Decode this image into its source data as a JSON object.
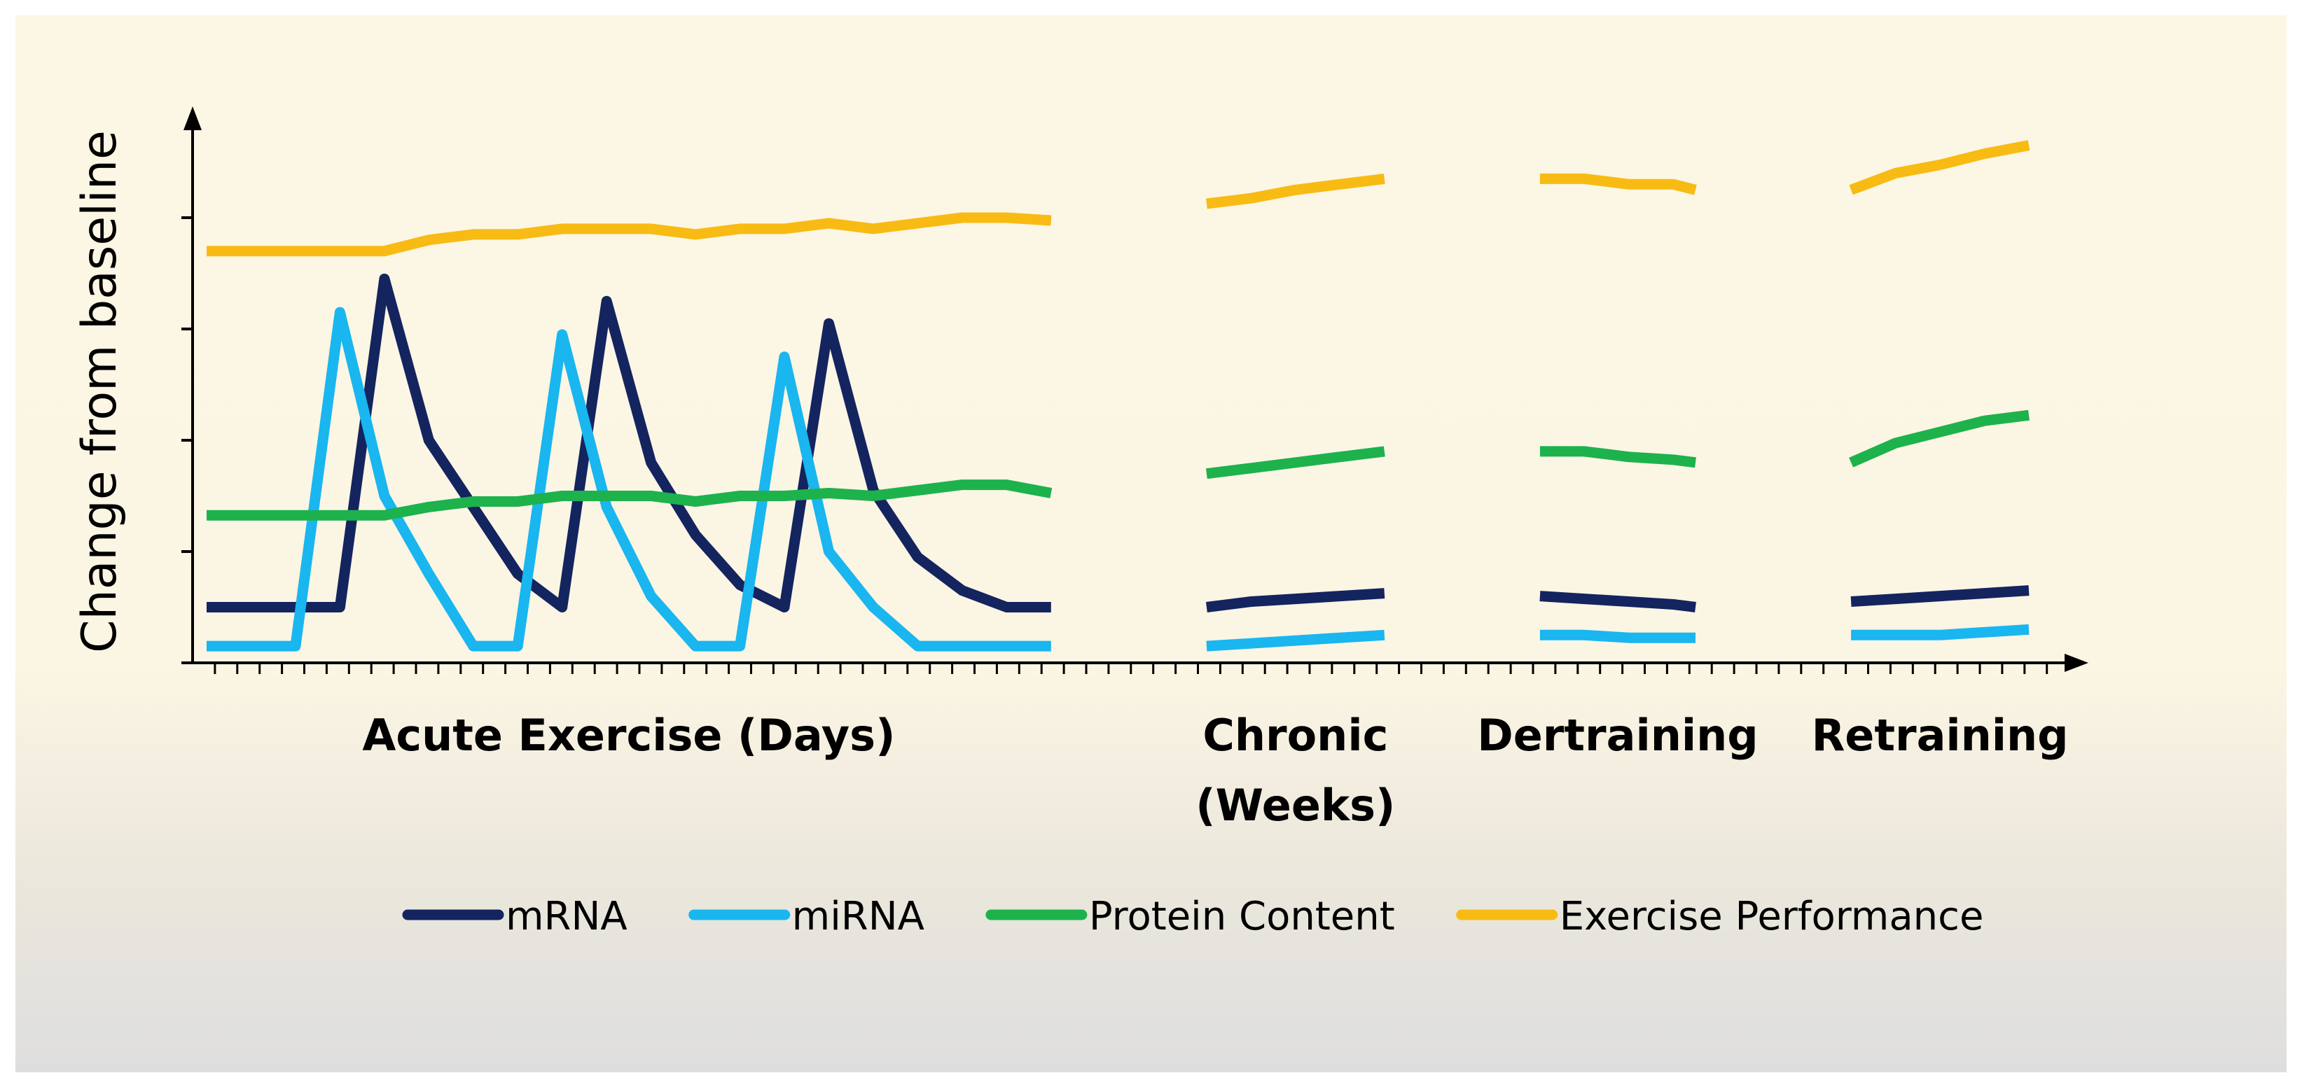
{
  "chart_data": {
    "type": "line",
    "title": "",
    "ylabel": "Change from baseline",
    "xlabel": "",
    "ylim": [
      0,
      100
    ],
    "grid": false,
    "legend_position": "bottom",
    "phases": [
      {
        "label_lines": [
          "Acute Exercise (Days)"
        ],
        "x_start": 0,
        "x_end": 19
      },
      {
        "label_lines": [
          "Chronic",
          "(Weeks)"
        ],
        "x_start": 22.5,
        "x_end": 26.5
      },
      {
        "label_lines": [
          "Dertraining"
        ],
        "x_start": 30,
        "x_end": 33.5
      },
      {
        "label_lines": [
          "Retraining"
        ],
        "x_start": 37,
        "x_end": 41
      }
    ],
    "series": [
      {
        "name": "mRNA",
        "color": "#14245f",
        "segments": [
          {
            "x": [
              0,
              1,
              2,
              3,
              4,
              5,
              6,
              7,
              8,
              9,
              10,
              11,
              12,
              13,
              14,
              15,
              16,
              17,
              18,
              19
            ],
            "y": [
              10,
              10,
              10,
              10,
              69,
              40,
              28,
              16,
              10,
              65,
              36,
              23,
              14,
              10,
              61,
              31,
              19,
              13,
              10,
              10
            ]
          },
          {
            "x": [
              22.5,
              23.5,
              24.5,
              25.5,
              26.5
            ],
            "y": [
              10,
              11,
              11.5,
              12,
              12.5
            ]
          },
          {
            "x": [
              30,
              31,
              32,
              33,
              33.5
            ],
            "y": [
              12,
              11.5,
              11,
              10.5,
              10
            ]
          },
          {
            "x": [
              37,
              38,
              39,
              40,
              41
            ],
            "y": [
              11,
              11.5,
              12,
              12.5,
              13
            ]
          }
        ]
      },
      {
        "name": "miRNA",
        "color": "#19b6f0",
        "segments": [
          {
            "x": [
              0,
              1,
              2,
              3,
              4,
              5,
              6,
              7,
              8,
              9,
              10,
              11,
              12,
              13,
              14,
              15,
              16,
              17,
              18,
              19
            ],
            "y": [
              3,
              3,
              3,
              63,
              30,
              16,
              3,
              3,
              59,
              28,
              12,
              3,
              3,
              55,
              20,
              10,
              3,
              3,
              3,
              3
            ]
          },
          {
            "x": [
              22.5,
              23.5,
              24.5,
              25.5,
              26.5
            ],
            "y": [
              3,
              3.5,
              4,
              4.5,
              5
            ]
          },
          {
            "x": [
              30,
              31,
              32,
              33,
              33.5
            ],
            "y": [
              5,
              5,
              4.5,
              4.5,
              4.5
            ]
          },
          {
            "x": [
              37,
              38,
              39,
              40,
              41
            ],
            "y": [
              5,
              5,
              5,
              5.5,
              6
            ]
          }
        ]
      },
      {
        "name": "Protein Content",
        "color": "#1db24c",
        "segments": [
          {
            "x": [
              0,
              1,
              2,
              3,
              4,
              5,
              6,
              7,
              8,
              9,
              10,
              11,
              12,
              13,
              14,
              15,
              16,
              17,
              18,
              19
            ],
            "y": [
              26.5,
              26.5,
              26.5,
              26.5,
              26.5,
              28,
              29,
              29,
              30,
              30,
              30,
              29,
              30,
              30,
              30.5,
              30,
              31,
              32,
              32,
              30.5
            ]
          },
          {
            "x": [
              22.5,
              23.5,
              24.5,
              25.5,
              26.5
            ],
            "y": [
              34,
              35,
              36,
              37,
              38
            ]
          },
          {
            "x": [
              30,
              31,
              32,
              33,
              33.5
            ],
            "y": [
              38,
              38,
              37,
              36.5,
              36
            ]
          },
          {
            "x": [
              37,
              38,
              39,
              40,
              41
            ],
            "y": [
              36,
              39.5,
              41.5,
              43.5,
              44.5
            ]
          }
        ]
      },
      {
        "name": "Exercise Performance",
        "color": "#f8bb14",
        "segments": [
          {
            "x": [
              0,
              1,
              2,
              3,
              4,
              5,
              6,
              7,
              8,
              9,
              10,
              11,
              12,
              13,
              14,
              15,
              16,
              17,
              18,
              19
            ],
            "y": [
              74,
              74,
              74,
              74,
              74,
              76,
              77,
              77,
              78,
              78,
              78,
              77,
              78,
              78,
              79,
              78,
              79,
              80,
              80,
              79.5
            ]
          },
          {
            "x": [
              22.5,
              23.5,
              24.5,
              25.5,
              26.5
            ],
            "y": [
              82.5,
              83.5,
              85,
              86,
              87
            ]
          },
          {
            "x": [
              30,
              31,
              32,
              33,
              33.5
            ],
            "y": [
              87,
              87,
              86,
              86,
              85
            ]
          },
          {
            "x": [
              37,
              38,
              39,
              40,
              41
            ],
            "y": [
              85,
              88,
              89.5,
              91.5,
              93
            ]
          }
        ]
      }
    ]
  }
}
